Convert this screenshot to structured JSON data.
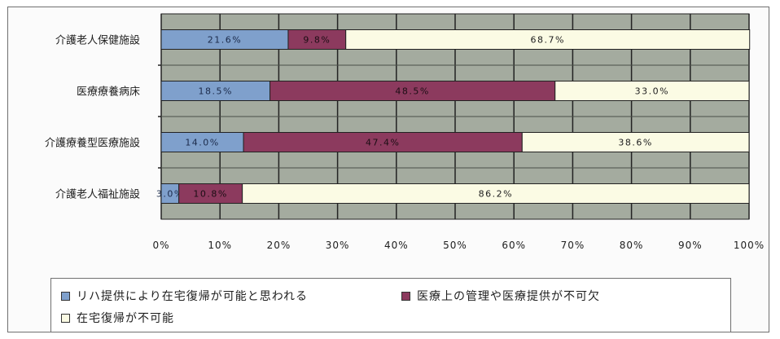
{
  "chart_data": {
    "type": "bar",
    "orientation": "horizontal",
    "stacked": true,
    "categories": [
      "介護老人保健施設",
      "医療療養病床",
      "介護療養型医療施設",
      "介護老人福祉施設"
    ],
    "series": [
      {
        "name": "リハ提供により在宅復帰が可能と思われる",
        "values": [
          21.6,
          18.5,
          14.0,
          3.0
        ],
        "labels": [
          "21.6%",
          "18.5%",
          "14.0%",
          "3.0%"
        ],
        "color": "#7fa0cc"
      },
      {
        "name": "医療上の管理や医療提供が不可欠",
        "values": [
          9.8,
          48.5,
          47.4,
          10.8
        ],
        "labels": [
          "9.8%",
          "48.5%",
          "47.4%",
          "10.8%"
        ],
        "color": "#8c3a5e"
      },
      {
        "name": "在宅復帰が不可能",
        "values": [
          68.7,
          33.0,
          38.6,
          86.2
        ],
        "labels": [
          "68.7%",
          "33.0%",
          "38.6%",
          "86.2%"
        ],
        "color": "#fbfbe4"
      }
    ],
    "xlim": [
      0,
      100
    ],
    "x_ticks": [
      "0%",
      "10%",
      "20%",
      "30%",
      "40%",
      "50%",
      "60%",
      "70%",
      "80%",
      "90%",
      "100%"
    ],
    "grid": true,
    "plot_background": "#a4ab9f",
    "legend_position": "bottom"
  }
}
